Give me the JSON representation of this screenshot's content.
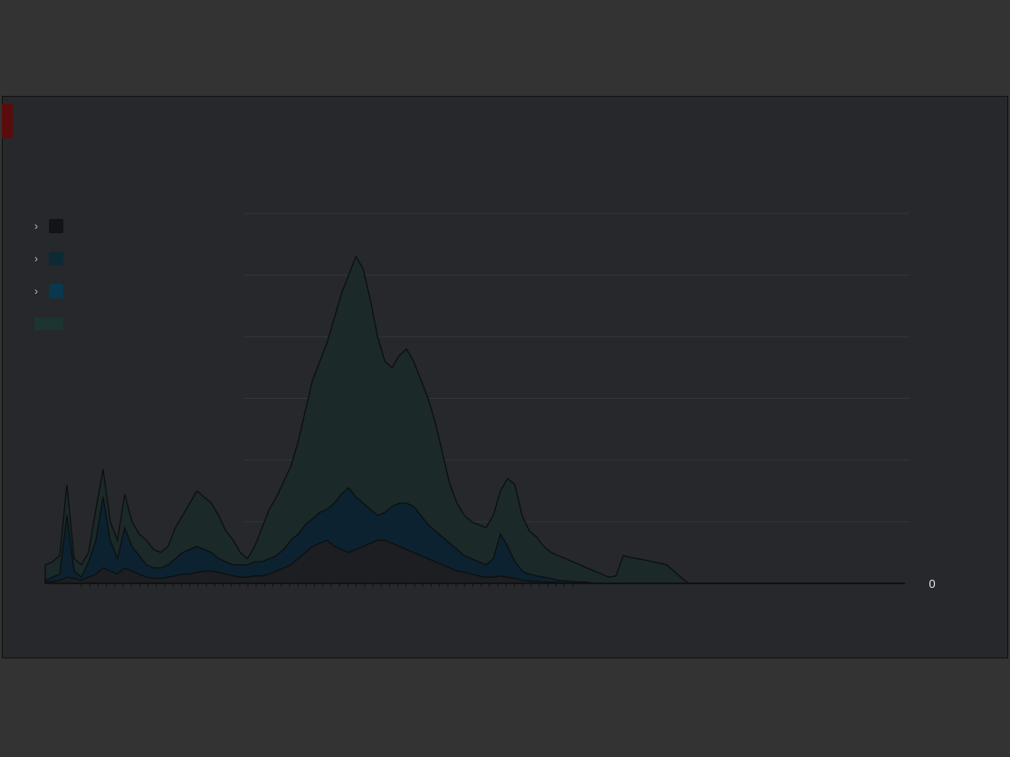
{
  "frame": {
    "background": "#26282b",
    "page_background": "#333333",
    "accent": "#5a0c0c"
  },
  "chart_data": {
    "type": "area",
    "title": "",
    "y_axis_side": "right",
    "yticks": [
      "0",
      "",
      "",
      "",
      "",
      "",
      ""
    ],
    "ylim": [
      0,
      6
    ],
    "grid": true,
    "legend_placement": "top-left",
    "x": [
      0,
      1,
      2,
      3,
      4,
      5,
      6,
      7,
      8,
      9,
      10,
      11,
      12,
      13,
      14,
      15,
      16,
      17,
      18,
      19,
      20,
      21,
      22,
      23,
      24,
      25,
      26,
      27,
      28,
      29,
      30,
      31,
      32,
      33,
      34,
      35,
      36,
      37,
      38,
      39,
      40,
      41,
      42,
      43,
      44,
      45,
      46,
      47,
      48,
      49,
      50,
      51,
      52,
      53,
      54,
      55,
      56,
      57,
      58,
      59,
      60,
      61,
      62,
      63,
      64,
      65,
      66,
      67,
      68,
      69,
      70,
      71,
      72,
      73,
      74,
      75,
      76,
      77,
      78,
      79,
      80,
      81,
      82,
      83,
      84,
      85,
      86,
      87,
      88,
      89,
      90,
      91,
      92,
      93,
      94,
      95,
      96,
      97,
      98,
      99,
      100,
      101,
      102,
      103,
      104,
      105,
      106,
      107,
      108,
      109,
      110,
      111,
      112,
      113,
      114,
      115,
      116,
      117,
      118,
      119
    ],
    "series": [
      {
        "name": "",
        "color": "#1b2a28",
        "values": [
          0.3,
          0.35,
          0.45,
          1.6,
          0.4,
          0.3,
          0.5,
          1.2,
          1.85,
          1.0,
          0.7,
          1.45,
          1.0,
          0.8,
          0.7,
          0.55,
          0.5,
          0.6,
          0.9,
          1.1,
          1.3,
          1.5,
          1.4,
          1.3,
          1.1,
          0.85,
          0.7,
          0.5,
          0.4,
          0.6,
          0.9,
          1.2,
          1.4,
          1.65,
          1.9,
          2.3,
          2.8,
          3.3,
          3.6,
          3.9,
          4.3,
          4.7,
          5.0,
          5.3,
          5.1,
          4.6,
          4.0,
          3.6,
          3.5,
          3.7,
          3.8,
          3.6,
          3.3,
          3.0,
          2.6,
          2.1,
          1.6,
          1.3,
          1.1,
          1.0,
          0.95,
          0.9,
          1.1,
          1.5,
          1.7,
          1.6,
          1.1,
          0.85,
          0.75,
          0.6,
          0.5,
          0.45,
          0.4,
          0.35,
          0.3,
          0.25,
          0.2,
          0.15,
          0.1,
          0.12,
          0.45,
          0.42,
          0.4,
          0.38,
          0.35,
          0.33,
          0.3,
          0.2,
          0.1,
          0.0,
          0.0,
          0.0,
          0.0,
          0.0,
          0.0,
          0.0,
          0.0,
          0.0,
          0.0,
          0.0,
          0.0,
          0.0,
          0.0,
          0.0,
          0.0,
          0.0,
          0.0,
          0.0,
          0.0,
          0.0,
          0.0,
          0.0,
          0.0,
          0.0,
          0.0,
          0.0,
          0.0,
          0.0,
          0.0,
          0.0
        ]
      },
      {
        "name": "",
        "color": "#0c2230",
        "values": [
          0.05,
          0.1,
          0.15,
          1.1,
          0.2,
          0.1,
          0.35,
          0.7,
          1.4,
          0.7,
          0.4,
          0.9,
          0.6,
          0.45,
          0.3,
          0.25,
          0.25,
          0.3,
          0.4,
          0.5,
          0.55,
          0.6,
          0.55,
          0.5,
          0.4,
          0.35,
          0.3,
          0.3,
          0.3,
          0.35,
          0.35,
          0.4,
          0.45,
          0.55,
          0.7,
          0.8,
          0.95,
          1.05,
          1.15,
          1.2,
          1.3,
          1.45,
          1.55,
          1.4,
          1.3,
          1.2,
          1.1,
          1.15,
          1.25,
          1.3,
          1.3,
          1.25,
          1.1,
          0.95,
          0.85,
          0.75,
          0.65,
          0.55,
          0.45,
          0.4,
          0.35,
          0.3,
          0.4,
          0.8,
          0.6,
          0.35,
          0.2,
          0.15,
          0.12,
          0.1,
          0.08,
          0.05,
          0.04,
          0.03,
          0.02,
          0.02,
          0.0,
          0.0,
          0.0,
          0.0,
          0.0,
          0.0,
          0.0,
          0.0,
          0.0,
          0.0,
          0.0,
          0.0,
          0.0,
          0.0,
          0.0,
          0.0,
          0.0,
          0.0,
          0.0,
          0.0,
          0.0,
          0.0,
          0.0,
          0.0,
          0.0,
          0.0,
          0.0,
          0.0,
          0.0,
          0.0,
          0.0,
          0.0,
          0.0,
          0.0,
          0.0,
          0.0,
          0.0,
          0.0,
          0.0,
          0.0,
          0.0,
          0.0,
          0.0,
          0.0
        ]
      },
      {
        "name": "",
        "color": "#1c1e22",
        "values": [
          0.02,
          0.03,
          0.05,
          0.1,
          0.08,
          0.05,
          0.1,
          0.15,
          0.25,
          0.2,
          0.15,
          0.25,
          0.2,
          0.15,
          0.1,
          0.08,
          0.08,
          0.1,
          0.12,
          0.15,
          0.15,
          0.18,
          0.2,
          0.2,
          0.18,
          0.15,
          0.12,
          0.1,
          0.1,
          0.12,
          0.12,
          0.15,
          0.2,
          0.25,
          0.3,
          0.4,
          0.5,
          0.6,
          0.65,
          0.7,
          0.6,
          0.55,
          0.5,
          0.55,
          0.6,
          0.65,
          0.7,
          0.7,
          0.65,
          0.6,
          0.55,
          0.5,
          0.45,
          0.4,
          0.35,
          0.3,
          0.25,
          0.2,
          0.18,
          0.15,
          0.12,
          0.1,
          0.1,
          0.12,
          0.1,
          0.08,
          0.05,
          0.04,
          0.03,
          0.02,
          0.02,
          0.01,
          0.0,
          0.0,
          0.0,
          0.0,
          0.0,
          0.0,
          0.0,
          0.0,
          0.0,
          0.0,
          0.0,
          0.0,
          0.0,
          0.0,
          0.0,
          0.0,
          0.0,
          0.0,
          0.0,
          0.0,
          0.0,
          0.0,
          0.0,
          0.0,
          0.0,
          0.0,
          0.0,
          0.0,
          0.0,
          0.0,
          0.0,
          0.0,
          0.0,
          0.0,
          0.0,
          0.0,
          0.0,
          0.0,
          0.0,
          0.0,
          0.0,
          0.0,
          0.0,
          0.0,
          0.0,
          0.0,
          0.0,
          0.0
        ]
      }
    ],
    "legend": [
      {
        "label": "",
        "color": "#121418"
      },
      {
        "label": "",
        "color": "#0e2a35"
      },
      {
        "label": "",
        "color": "#0a3850"
      },
      {
        "label": "",
        "color": "#1c3530"
      }
    ],
    "xticks": [
      "",
      "",
      "",
      "",
      "",
      ""
    ]
  },
  "header": {
    "title_line1": "",
    "title_line2": ""
  },
  "footer": {
    "left": "",
    "right": ""
  }
}
